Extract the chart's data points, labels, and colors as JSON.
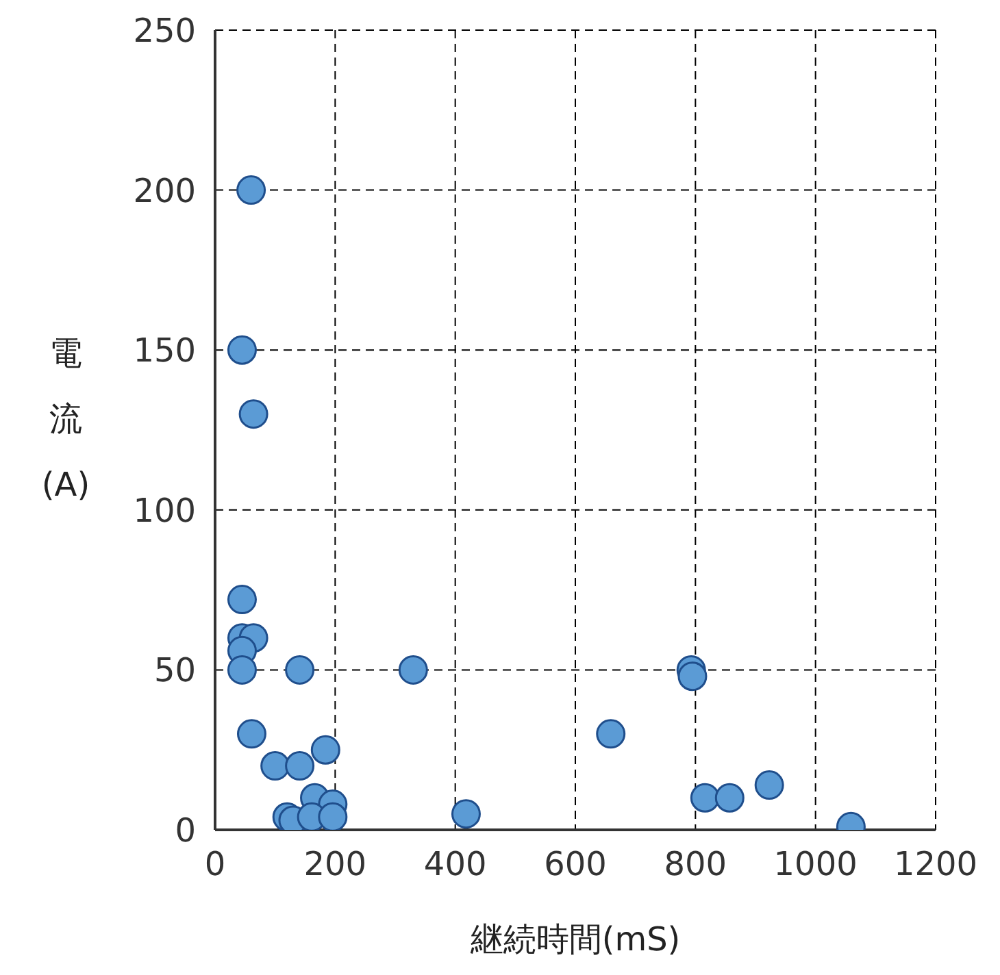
{
  "chart_data": {
    "type": "scatter",
    "xlabel": "継続時間(mS)",
    "ylabel": "電流(A)",
    "x": [
      60,
      45,
      64,
      45,
      45,
      64,
      45,
      45,
      141,
      330,
      61,
      100,
      141,
      184,
      166,
      196,
      120,
      130,
      161,
      196,
      418,
      659,
      793,
      795,
      816,
      857,
      923,
      1059
    ],
    "values": [
      200,
      150,
      130,
      72,
      60,
      60,
      56,
      50,
      50,
      50,
      30,
      20,
      20,
      25,
      10,
      8,
      4,
      3,
      4,
      4,
      5,
      30,
      50,
      48,
      10,
      10,
      14,
      1
    ],
    "color": "#5b9bd5",
    "marker": "circle",
    "xlim": [
      0,
      1200
    ],
    "xticks": [
      0,
      200,
      400,
      600,
      800,
      1000,
      1200
    ],
    "ylim": [
      0,
      250
    ],
    "yticks": [
      0,
      50,
      100,
      150,
      200,
      250
    ],
    "grid": true,
    "legend": false
  }
}
